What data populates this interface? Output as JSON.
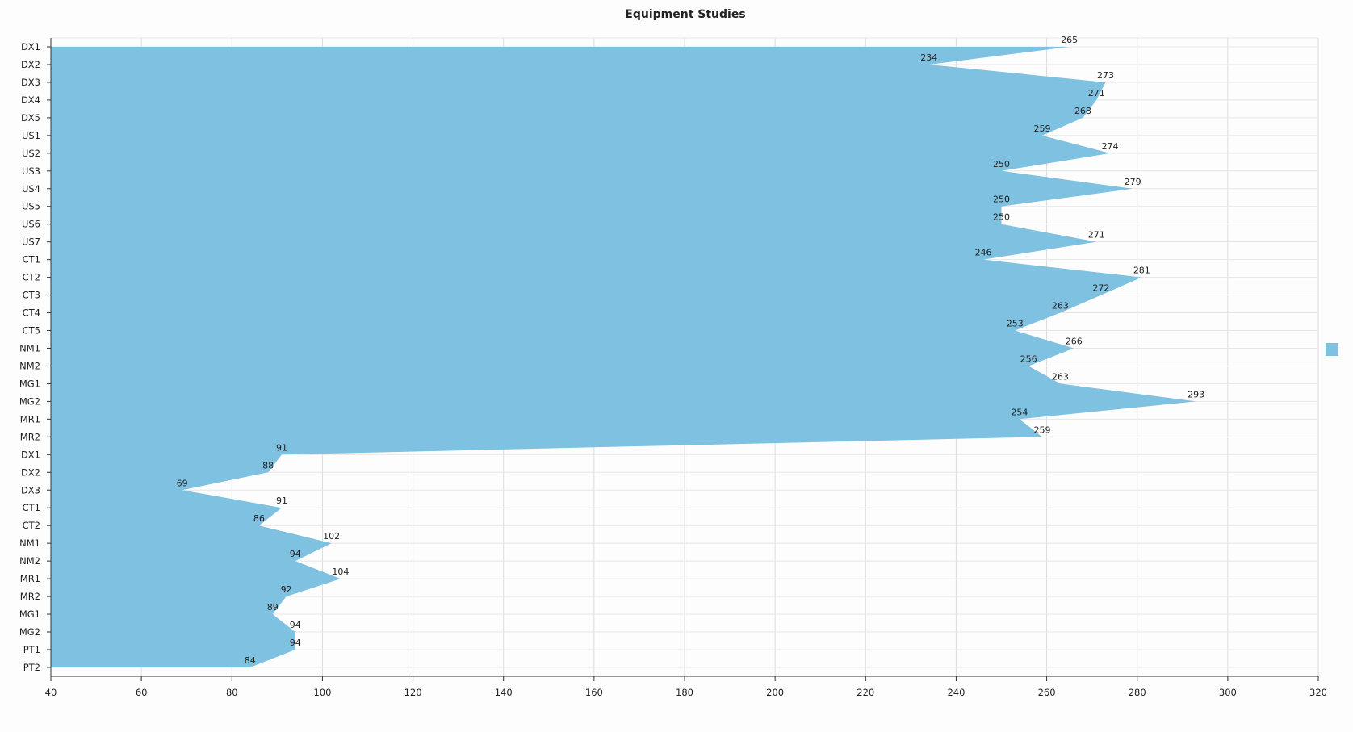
{
  "chart_data": {
    "type": "area",
    "orientation": "horizontal",
    "title": "Equipment Studies",
    "xlabel": "",
    "ylabel": "",
    "xlim": [
      40,
      320
    ],
    "xticks": [
      40,
      60,
      80,
      100,
      120,
      140,
      160,
      180,
      200,
      220,
      240,
      260,
      280,
      300,
      320
    ],
    "grid": true,
    "legend": "right",
    "categories": [
      "DX1",
      "DX2",
      "DX3",
      "DX4",
      "DX5",
      "US1",
      "US2",
      "US3",
      "US4",
      "US5",
      "US6",
      "US7",
      "CT1",
      "CT2",
      "CT3",
      "CT4",
      "CT5",
      "NM1",
      "NM2",
      "MG1",
      "MG2",
      "MR1",
      "MR2",
      "DX1",
      "DX2",
      "DX3",
      "CT1",
      "CT2",
      "NM1",
      "NM2",
      "MR1",
      "MR2",
      "MG1",
      "MG2",
      "PT1",
      "PT2"
    ],
    "series": [
      {
        "values": [
          265,
          234,
          273,
          271,
          268,
          259,
          274,
          250,
          279,
          250,
          250,
          271,
          246,
          281,
          272,
          263,
          253,
          266,
          256,
          263,
          293,
          254,
          259,
          91,
          88,
          69,
          91,
          86,
          102,
          94,
          104,
          92,
          89,
          94,
          94,
          84
        ],
        "color": "#7fc1e0"
      }
    ]
  }
}
